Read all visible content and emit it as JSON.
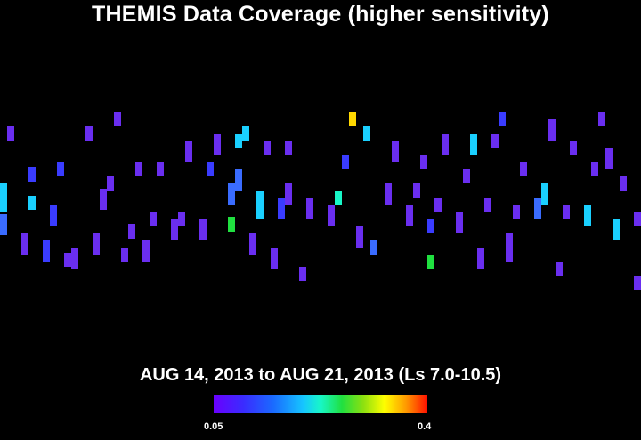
{
  "title": "THEMIS Data Coverage (higher sensitivity)",
  "date_range": "AUG 14, 2013 to AUG 21, 2013 (Ls 7.0-10.5)",
  "colorbar": {
    "min_label": "0.05",
    "max_label": "0.4",
    "colors": [
      "#6a00ff",
      "#3a2cff",
      "#1a6bff",
      "#16c6ff",
      "#18f7c8",
      "#20e040",
      "#8ce010",
      "#ffff00",
      "#ff9a00",
      "#ff1000"
    ]
  },
  "background": "#000000",
  "coverage_strips": [
    [
      8,
      142,
      2,
      "#6a2ef0"
    ],
    [
      24,
      262,
      3,
      "#6a2ef0"
    ],
    [
      32,
      188,
      2,
      "#3a3cff"
    ],
    [
      32,
      220,
      2,
      "#1ad0ff"
    ],
    [
      0,
      206,
      4,
      "#1ad0ff"
    ],
    [
      0,
      240,
      3,
      "#3a6cff"
    ],
    [
      48,
      270,
      3,
      "#3a3cff"
    ],
    [
      56,
      230,
      3,
      "#3a3cff"
    ],
    [
      64,
      182,
      2,
      "#3a3cff"
    ],
    [
      72,
      284,
      2,
      "#6a2ef0"
    ],
    [
      80,
      278,
      3,
      "#6a2ef0"
    ],
    [
      96,
      142,
      2,
      "#6a2ef0"
    ],
    [
      104,
      262,
      3,
      "#6a2ef0"
    ],
    [
      112,
      212,
      3,
      "#6a2ef0"
    ],
    [
      120,
      198,
      2,
      "#6a2ef0"
    ],
    [
      128,
      126,
      2,
      "#6a2ef0"
    ],
    [
      136,
      278,
      2,
      "#6a2ef0"
    ],
    [
      144,
      252,
      2,
      "#6a2ef0"
    ],
    [
      152,
      182,
      2,
      "#6a2ef0"
    ],
    [
      160,
      270,
      3,
      "#6a2ef0"
    ],
    [
      168,
      238,
      2,
      "#6a2ef0"
    ],
    [
      176,
      182,
      2,
      "#6a2ef0"
    ],
    [
      192,
      246,
      3,
      "#6a2ef0"
    ],
    [
      200,
      238,
      2,
      "#6a2ef0"
    ],
    [
      208,
      158,
      3,
      "#6a2ef0"
    ],
    [
      224,
      246,
      3,
      "#6a2ef0"
    ],
    [
      232,
      182,
      2,
      "#3a3cff"
    ],
    [
      240,
      150,
      3,
      "#6a2ef0"
    ],
    [
      256,
      244,
      2,
      "#20e040"
    ],
    [
      256,
      206,
      3,
      "#3a6cff"
    ],
    [
      264,
      150,
      2,
      "#1ad0ff"
    ],
    [
      264,
      190,
      3,
      "#3a6cff"
    ],
    [
      272,
      142,
      2,
      "#1ad0ff"
    ],
    [
      280,
      262,
      3,
      "#6a2ef0"
    ],
    [
      288,
      214,
      4,
      "#1ad0ff"
    ],
    [
      296,
      158,
      2,
      "#6a2ef0"
    ],
    [
      304,
      278,
      3,
      "#6a2ef0"
    ],
    [
      312,
      222,
      3,
      "#3a3cff"
    ],
    [
      320,
      206,
      3,
      "#6a2ef0"
    ],
    [
      320,
      158,
      2,
      "#6a2ef0"
    ],
    [
      336,
      300,
      2,
      "#6a2ef0"
    ],
    [
      344,
      222,
      3,
      "#6a2ef0"
    ],
    [
      368,
      230,
      3,
      "#6a2ef0"
    ],
    [
      376,
      214,
      2,
      "#18f7c8"
    ],
    [
      384,
      174,
      2,
      "#3a3cff"
    ],
    [
      392,
      126,
      2,
      "#ffd800"
    ],
    [
      400,
      254,
      3,
      "#6a2ef0"
    ],
    [
      408,
      142,
      2,
      "#1ad0ff"
    ],
    [
      416,
      270,
      2,
      "#3a6cff"
    ],
    [
      432,
      206,
      3,
      "#6a2ef0"
    ],
    [
      440,
      158,
      3,
      "#6a2ef0"
    ],
    [
      456,
      230,
      3,
      "#6a2ef0"
    ],
    [
      464,
      206,
      2,
      "#6a2ef0"
    ],
    [
      472,
      174,
      2,
      "#6a2ef0"
    ],
    [
      480,
      246,
      2,
      "#3a3cff"
    ],
    [
      480,
      286,
      2,
      "#20e040"
    ],
    [
      488,
      222,
      2,
      "#6a2ef0"
    ],
    [
      496,
      150,
      3,
      "#6a2ef0"
    ],
    [
      512,
      238,
      3,
      "#6a2ef0"
    ],
    [
      520,
      190,
      2,
      "#6a2ef0"
    ],
    [
      528,
      150,
      3,
      "#1ad0ff"
    ],
    [
      536,
      278,
      3,
      "#6a2ef0"
    ],
    [
      544,
      222,
      2,
      "#6a2ef0"
    ],
    [
      552,
      150,
      2,
      "#6a2ef0"
    ],
    [
      560,
      126,
      2,
      "#3a3cff"
    ],
    [
      568,
      262,
      4,
      "#6a2ef0"
    ],
    [
      576,
      230,
      2,
      "#6a2ef0"
    ],
    [
      584,
      182,
      2,
      "#6a2ef0"
    ],
    [
      600,
      222,
      3,
      "#3a6cff"
    ],
    [
      608,
      206,
      3,
      "#1ad0ff"
    ],
    [
      616,
      134,
      3,
      "#6a2ef0"
    ],
    [
      624,
      294,
      2,
      "#6a2ef0"
    ],
    [
      632,
      230,
      2,
      "#6a2ef0"
    ],
    [
      640,
      158,
      2,
      "#6a2ef0"
    ],
    [
      656,
      230,
      3,
      "#1ad0ff"
    ],
    [
      664,
      182,
      2,
      "#6a2ef0"
    ],
    [
      672,
      126,
      2,
      "#6a2ef0"
    ],
    [
      680,
      166,
      3,
      "#6a2ef0"
    ],
    [
      688,
      246,
      3,
      "#1ad0ff"
    ],
    [
      696,
      198,
      2,
      "#6a2ef0"
    ],
    [
      712,
      238,
      2,
      "#6a2ef0"
    ],
    [
      712,
      310,
      2,
      "#6a2ef0"
    ]
  ]
}
